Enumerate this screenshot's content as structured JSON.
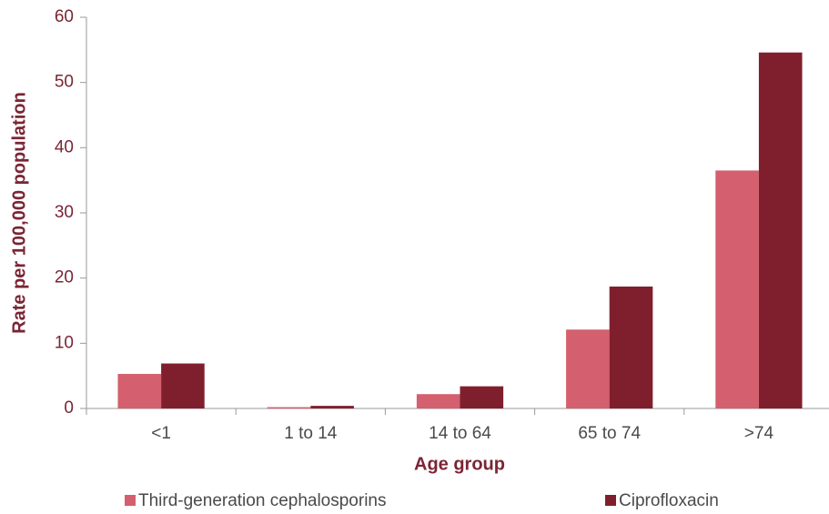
{
  "chart_data": {
    "type": "bar",
    "x_label": "Age group",
    "y_label": "Rate per 100,000 population",
    "categories": [
      "<1",
      "1 to 14",
      "14 to 64",
      "65 to 74",
      ">74"
    ],
    "series": [
      {
        "name": "Third-generation cephalosporins",
        "color": "#d45f6e",
        "values": [
          5.3,
          0.2,
          2.2,
          12.1,
          36.5
        ]
      },
      {
        "name": "Ciprofloxacin",
        "color": "#7f1f2e",
        "values": [
          6.9,
          0.4,
          3.4,
          18.7,
          54.6
        ]
      }
    ],
    "ylim": [
      0,
      60
    ],
    "yticks": [
      0,
      10,
      20,
      30,
      40,
      50,
      60
    ],
    "grid": false
  }
}
